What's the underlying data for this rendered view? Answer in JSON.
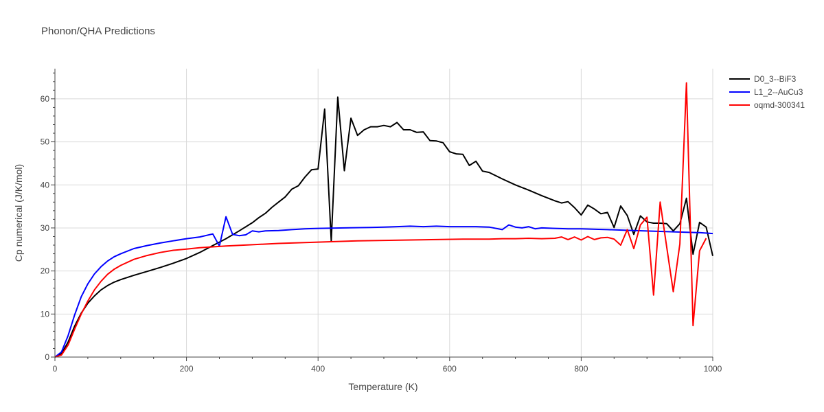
{
  "chart_data": {
    "type": "line",
    "title": "Phonon/QHA Predictions",
    "xlabel": "Temperature (K)",
    "ylabel": "Cp numerical (J/K/mol)",
    "xlim": [
      0,
      1000
    ],
    "ylim": [
      0,
      67
    ],
    "x_ticks": [
      0,
      200,
      400,
      600,
      800,
      1000
    ],
    "y_ticks": [
      0,
      10,
      20,
      30,
      40,
      50,
      60
    ],
    "grid": true,
    "legend_position": "top-right",
    "series": [
      {
        "name": "D0_3--BiF3",
        "color": "#000000",
        "points": [
          [
            0,
            0
          ],
          [
            10,
            0.8
          ],
          [
            20,
            3.5
          ],
          [
            30,
            7.2
          ],
          [
            40,
            10.2
          ],
          [
            50,
            12.5
          ],
          [
            60,
            14.2
          ],
          [
            70,
            15.6
          ],
          [
            80,
            16.6
          ],
          [
            90,
            17.4
          ],
          [
            100,
            18.0
          ],
          [
            120,
            19.0
          ],
          [
            140,
            19.9
          ],
          [
            160,
            20.8
          ],
          [
            180,
            21.8
          ],
          [
            200,
            22.9
          ],
          [
            220,
            24.3
          ],
          [
            240,
            25.9
          ],
          [
            260,
            27.5
          ],
          [
            280,
            29.3
          ],
          [
            300,
            31.2
          ],
          [
            310,
            32.4
          ],
          [
            320,
            33.4
          ],
          [
            330,
            34.8
          ],
          [
            340,
            36.0
          ],
          [
            350,
            37.2
          ],
          [
            360,
            39.0
          ],
          [
            370,
            39.8
          ],
          [
            380,
            41.8
          ],
          [
            390,
            43.5
          ],
          [
            400,
            43.7
          ],
          [
            410,
            57.6
          ],
          [
            420,
            27.0
          ],
          [
            430,
            60.4
          ],
          [
            440,
            43.3
          ],
          [
            450,
            55.5
          ],
          [
            460,
            51.5
          ],
          [
            470,
            52.8
          ],
          [
            480,
            53.5
          ],
          [
            490,
            53.5
          ],
          [
            500,
            53.8
          ],
          [
            510,
            53.5
          ],
          [
            520,
            54.5
          ],
          [
            530,
            52.8
          ],
          [
            540,
            52.8
          ],
          [
            550,
            52.2
          ],
          [
            560,
            52.3
          ],
          [
            570,
            50.3
          ],
          [
            580,
            50.2
          ],
          [
            590,
            49.8
          ],
          [
            600,
            47.7
          ],
          [
            610,
            47.2
          ],
          [
            620,
            47.1
          ],
          [
            630,
            44.5
          ],
          [
            640,
            45.5
          ],
          [
            650,
            43.2
          ],
          [
            660,
            42.9
          ],
          [
            680,
            41.4
          ],
          [
            700,
            40.0
          ],
          [
            720,
            38.8
          ],
          [
            740,
            37.5
          ],
          [
            760,
            36.3
          ],
          [
            770,
            35.8
          ],
          [
            780,
            36.1
          ],
          [
            790,
            34.7
          ],
          [
            800,
            33.0
          ],
          [
            810,
            35.3
          ],
          [
            820,
            34.4
          ],
          [
            830,
            33.3
          ],
          [
            840,
            33.6
          ],
          [
            850,
            30.1
          ],
          [
            860,
            35.1
          ],
          [
            870,
            32.9
          ],
          [
            880,
            28.5
          ],
          [
            890,
            32.8
          ],
          [
            900,
            31.4
          ],
          [
            910,
            31.1
          ],
          [
            920,
            31.1
          ],
          [
            930,
            31.0
          ],
          [
            940,
            29.3
          ],
          [
            950,
            31.0
          ],
          [
            960,
            36.9
          ],
          [
            970,
            23.9
          ],
          [
            980,
            31.3
          ],
          [
            990,
            30.2
          ],
          [
            1000,
            23.5
          ]
        ]
      },
      {
        "name": "L1_2--AuCu3",
        "color": "#0000ff",
        "points": [
          [
            0,
            0
          ],
          [
            10,
            1.2
          ],
          [
            20,
            5.0
          ],
          [
            30,
            9.8
          ],
          [
            40,
            14.0
          ],
          [
            50,
            17.0
          ],
          [
            60,
            19.3
          ],
          [
            70,
            21.0
          ],
          [
            80,
            22.3
          ],
          [
            90,
            23.3
          ],
          [
            100,
            24.0
          ],
          [
            120,
            25.2
          ],
          [
            140,
            25.9
          ],
          [
            160,
            26.5
          ],
          [
            180,
            27.0
          ],
          [
            200,
            27.5
          ],
          [
            220,
            27.9
          ],
          [
            240,
            28.6
          ],
          [
            250,
            25.8
          ],
          [
            260,
            32.6
          ],
          [
            270,
            28.5
          ],
          [
            280,
            28.2
          ],
          [
            290,
            28.4
          ],
          [
            300,
            29.3
          ],
          [
            310,
            29.1
          ],
          [
            320,
            29.3
          ],
          [
            340,
            29.4
          ],
          [
            360,
            29.6
          ],
          [
            380,
            29.8
          ],
          [
            400,
            29.9
          ],
          [
            440,
            30.0
          ],
          [
            480,
            30.1
          ],
          [
            500,
            30.2
          ],
          [
            520,
            30.3
          ],
          [
            540,
            30.4
          ],
          [
            560,
            30.3
          ],
          [
            580,
            30.4
          ],
          [
            600,
            30.3
          ],
          [
            620,
            30.3
          ],
          [
            640,
            30.3
          ],
          [
            660,
            30.2
          ],
          [
            680,
            29.6
          ],
          [
            690,
            30.7
          ],
          [
            700,
            30.2
          ],
          [
            710,
            30.0
          ],
          [
            720,
            30.3
          ],
          [
            730,
            29.8
          ],
          [
            740,
            30.0
          ],
          [
            760,
            29.9
          ],
          [
            780,
            29.8
          ],
          [
            800,
            29.8
          ],
          [
            840,
            29.6
          ],
          [
            880,
            29.4
          ],
          [
            920,
            29.2
          ],
          [
            960,
            29.0
          ],
          [
            980,
            28.9
          ],
          [
            1000,
            28.7
          ]
        ]
      },
      {
        "name": "oqmd-300341",
        "color": "#ff0000",
        "points": [
          [
            0,
            0
          ],
          [
            10,
            0.5
          ],
          [
            20,
            2.8
          ],
          [
            30,
            6.5
          ],
          [
            40,
            10.0
          ],
          [
            50,
            13.0
          ],
          [
            60,
            15.6
          ],
          [
            70,
            17.6
          ],
          [
            80,
            19.2
          ],
          [
            90,
            20.4
          ],
          [
            100,
            21.3
          ],
          [
            120,
            22.7
          ],
          [
            140,
            23.6
          ],
          [
            160,
            24.3
          ],
          [
            180,
            24.8
          ],
          [
            200,
            25.1
          ],
          [
            220,
            25.4
          ],
          [
            240,
            25.6
          ],
          [
            260,
            25.8
          ],
          [
            300,
            26.1
          ],
          [
            340,
            26.4
          ],
          [
            380,
            26.6
          ],
          [
            420,
            26.8
          ],
          [
            460,
            27.0
          ],
          [
            500,
            27.1
          ],
          [
            540,
            27.2
          ],
          [
            580,
            27.3
          ],
          [
            620,
            27.4
          ],
          [
            660,
            27.4
          ],
          [
            680,
            27.5
          ],
          [
            700,
            27.5
          ],
          [
            720,
            27.6
          ],
          [
            740,
            27.5
          ],
          [
            760,
            27.6
          ],
          [
            770,
            27.9
          ],
          [
            780,
            27.3
          ],
          [
            790,
            27.9
          ],
          [
            800,
            27.2
          ],
          [
            810,
            28.0
          ],
          [
            820,
            27.3
          ],
          [
            830,
            27.7
          ],
          [
            840,
            27.8
          ],
          [
            850,
            27.4
          ],
          [
            860,
            26.0
          ],
          [
            870,
            29.6
          ],
          [
            880,
            25.2
          ],
          [
            890,
            30.7
          ],
          [
            900,
            32.5
          ],
          [
            910,
            14.4
          ],
          [
            920,
            36.0
          ],
          [
            930,
            25.6
          ],
          [
            940,
            15.2
          ],
          [
            950,
            26.3
          ],
          [
            960,
            63.7
          ],
          [
            970,
            7.3
          ],
          [
            980,
            24.7
          ],
          [
            990,
            27.6
          ]
        ]
      }
    ]
  }
}
